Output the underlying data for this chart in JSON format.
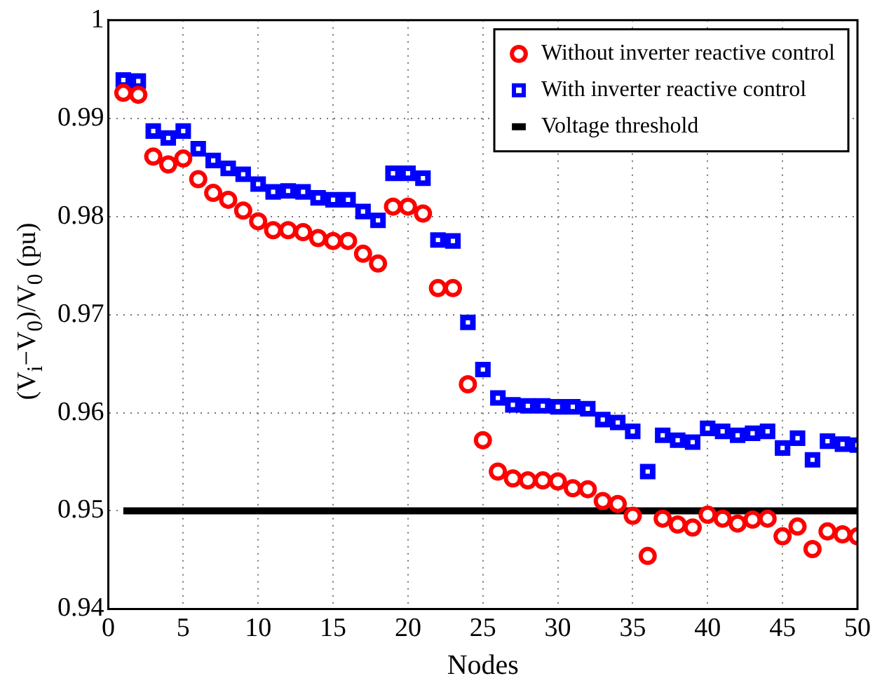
{
  "chart_data": {
    "type": "scatter",
    "xlabel": "Nodes",
    "ylabel": "(V$_{i}$−V$_{0}$)/V$_{0}$ (pu)",
    "x": [
      1,
      2,
      3,
      4,
      5,
      6,
      7,
      8,
      9,
      10,
      11,
      12,
      13,
      14,
      15,
      16,
      17,
      18,
      19,
      20,
      21,
      22,
      23,
      24,
      25,
      26,
      27,
      28,
      29,
      30,
      31,
      32,
      33,
      34,
      35,
      36,
      37,
      38,
      39,
      40,
      41,
      42,
      43,
      44,
      45,
      46,
      47,
      48,
      49,
      50
    ],
    "series": [
      {
        "name": "Without inverter reactive control",
        "color": "#ff0000",
        "marker": "circle",
        "values": [
          0.9926,
          0.9924,
          0.9861,
          0.9853,
          0.9859,
          0.9838,
          0.9824,
          0.9817,
          0.9806,
          0.9795,
          0.9786,
          0.9786,
          0.9784,
          0.9778,
          0.9775,
          0.9775,
          0.9762,
          0.9752,
          0.981,
          0.981,
          0.9803,
          0.9727,
          0.9727,
          0.9629,
          0.9572,
          0.954,
          0.9533,
          0.9531,
          0.9531,
          0.953,
          0.9523,
          0.9522,
          0.951,
          0.9507,
          0.9495,
          0.9454,
          0.9492,
          0.9486,
          0.9483,
          0.9496,
          0.9492,
          0.9487,
          0.9491,
          0.9492,
          0.9474,
          0.9484,
          0.9461,
          0.9479,
          0.9476,
          0.9474
        ]
      },
      {
        "name": "With inverter reactive control",
        "color": "#0000ff",
        "marker": "square",
        "values": [
          0.9939,
          0.9938,
          0.9887,
          0.988,
          0.9887,
          0.9869,
          0.9857,
          0.9849,
          0.9843,
          0.9833,
          0.9825,
          0.9826,
          0.9825,
          0.9819,
          0.9817,
          0.9817,
          0.9805,
          0.9796,
          0.9844,
          0.9844,
          0.9839,
          0.9776,
          0.9775,
          0.9692,
          0.9644,
          0.9615,
          0.9608,
          0.9607,
          0.9607,
          0.9606,
          0.9606,
          0.9604,
          0.9593,
          0.959,
          0.9581,
          0.954,
          0.9577,
          0.9572,
          0.957,
          0.9584,
          0.9581,
          0.9577,
          0.9579,
          0.9581,
          0.9564,
          0.9574,
          0.9552,
          0.9571,
          0.9568,
          0.9567
        ]
      },
      {
        "name": "Voltage threshold",
        "type": "line",
        "color": "#000000",
        "marker": "none",
        "x": [
          1,
          50
        ],
        "values": [
          0.95,
          0.95
        ]
      }
    ],
    "xlim": [
      0,
      50
    ],
    "xticks": [
      0,
      5,
      10,
      15,
      20,
      25,
      30,
      35,
      40,
      45,
      50
    ],
    "ylim": [
      0.94,
      1
    ],
    "yticks": [
      0.94,
      0.95,
      0.96,
      0.97,
      0.98,
      0.99,
      1
    ],
    "grid": true,
    "legend": "top right"
  }
}
